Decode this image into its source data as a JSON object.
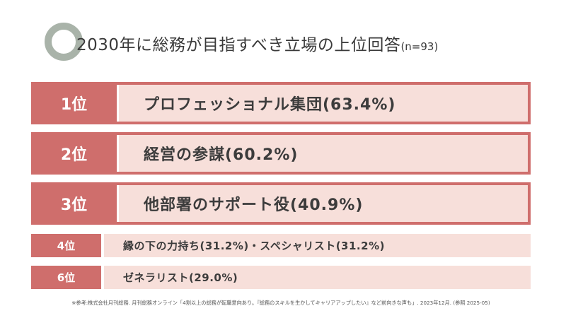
{
  "title": {
    "main": "2030年に総務が目指すべき立場の上位回答",
    "n": "(n=93)"
  },
  "ranks": [
    {
      "rank": "1位",
      "label": "プロフェッショナル集団(63.4%)"
    },
    {
      "rank": "2位",
      "label": "経営の参謀(60.2%)"
    },
    {
      "rank": "3位",
      "label": "他部署のサポート役(40.9%)"
    },
    {
      "rank": "4位",
      "label": "縁の下の力持ち(31.2%)・スペシャリスト(31.2%)"
    },
    {
      "rank": "6位",
      "label": "ゼネラリスト(29.0%)"
    }
  ],
  "footnote": "※参考:株式会社月刊総務. 月刊総務オンライン「4割以上の総務が転職意向あり。『総務のスキルを生かしてキャリアアップしたい』など前向きな声も」. 2023年12月. (参照 2025-05)",
  "colors": {
    "accent": "#cf6e6c",
    "fill": "#f7dfda",
    "ring": "#a9b3a9"
  }
}
